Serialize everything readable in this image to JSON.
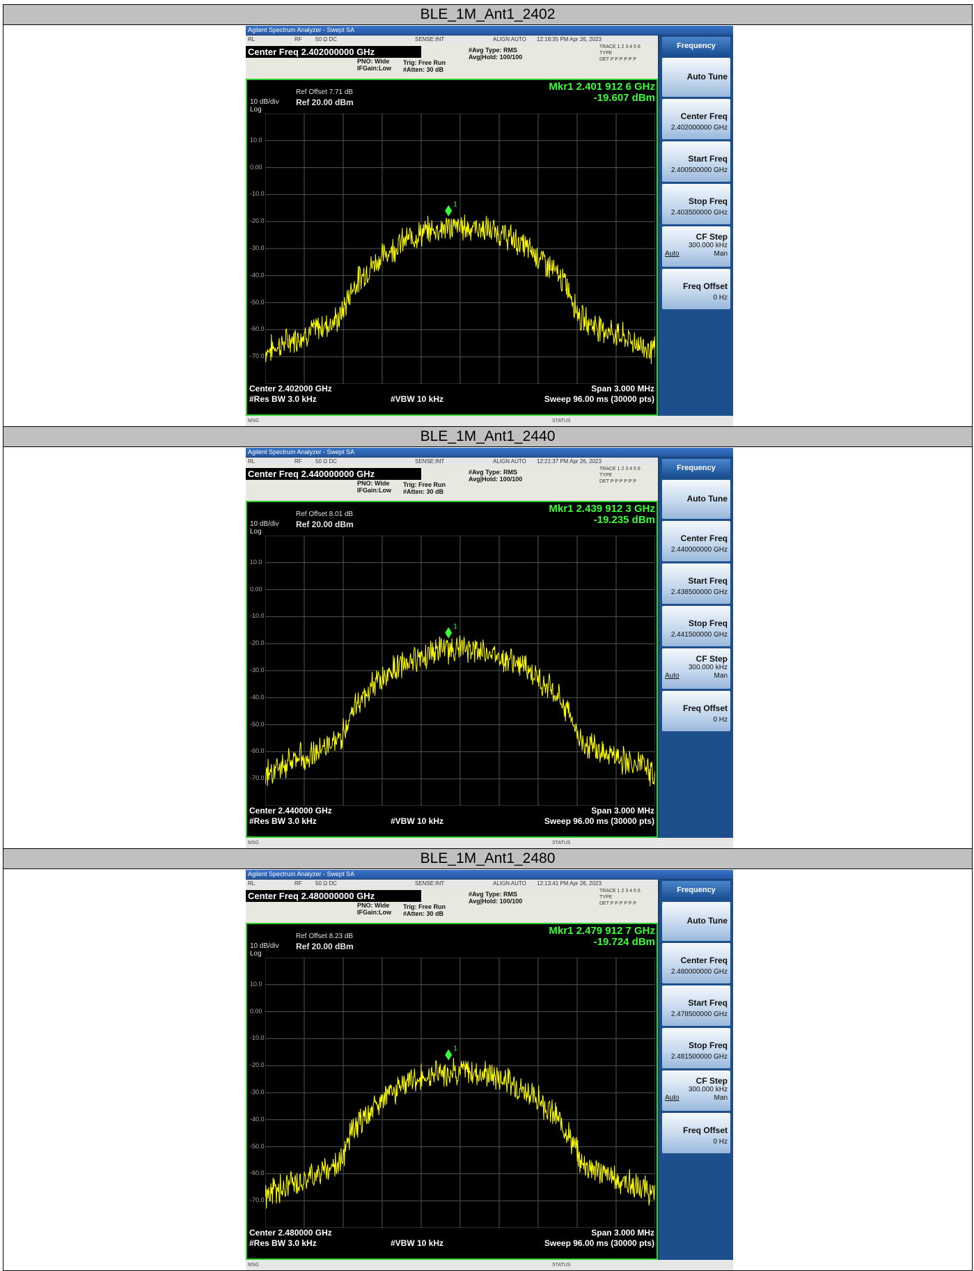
{
  "document": {
    "sections": [
      {
        "title": "BLE_1M_Ant1_2402",
        "app_title": "Agilent Spectrum Analyzer - Swept SA",
        "status_rl": "RL",
        "status_rf": "RF",
        "status_ohm": "50 Ω  DC",
        "status_sense": "SENSE:INT",
        "status_align": "ALIGN AUTO",
        "timestamp": "12:18:35 PM Apr 26, 2023",
        "center_freq": "Center Freq 2.402000000 GHz",
        "pno": "PNO: Wide",
        "ifgain": "IFGain:Low",
        "trig": "Trig: Free Run",
        "atten": "#Atten: 30 dB",
        "avg_type": "#Avg Type: RMS",
        "avg_hold": "Avg|Hold: 100/100",
        "trace_label": "TRACE 1 2 3 4 5 6",
        "type_label": "TYPE",
        "det_label": "DET  P P P P P P",
        "marker_freq": "Mkr1 2.401 912 6 GHz",
        "marker_level": "-19.607 dBm",
        "ref_offset": "Ref Offset 7.71 dB",
        "scale": "10 dB/div",
        "ref_level": "Ref 20.00 dBm",
        "log": "Log",
        "y_ticks": [
          "10.0",
          "0.00",
          "-10.0",
          "-20.0",
          "-30.0",
          "-40.0",
          "-50.0",
          "-60.0",
          "-70.0"
        ],
        "center_label": "Center 2.402000 GHz",
        "span_label": "Span 3.000 MHz",
        "rbw": "#Res BW 3.0 kHz",
        "vbw": "#VBW 10 kHz",
        "sweep": "Sweep  96.00 ms (30000 pts)",
        "msg": "MSG",
        "status": "STATUS",
        "marker_num": "1",
        "softkeys": {
          "header": "Frequency",
          "auto_tune": "Auto Tune",
          "center_freq_label": "Center Freq",
          "center_freq_val": "2.402000000 GHz",
          "start_freq_label": "Start Freq",
          "start_freq_val": "2.400500000 GHz",
          "stop_freq_label": "Stop Freq",
          "stop_freq_val": "2.403500000 GHz",
          "cf_step_label": "CF Step",
          "cf_step_val": "300.000 kHz",
          "cf_auto": "Auto",
          "cf_man": "Man",
          "freq_offset_label": "Freq Offset",
          "freq_offset_val": "0 Hz"
        }
      },
      {
        "title": "BLE_1M_Ant1_2440",
        "app_title": "Agilent Spectrum Analyzer - Swept SA",
        "status_rl": "RL",
        "status_rf": "RF",
        "status_ohm": "50 Ω  DC",
        "status_sense": "SENSE:INT",
        "status_align": "ALIGN AUTO",
        "timestamp": "12:21:37 PM Apr 26, 2023",
        "center_freq": "Center Freq 2.440000000 GHz",
        "pno": "PNO: Wide",
        "ifgain": "IFGain:Low",
        "trig": "Trig: Free Run",
        "atten": "#Atten: 30 dB",
        "avg_type": "#Avg Type: RMS",
        "avg_hold": "Avg|Hold: 100/100",
        "trace_label": "TRACE 1 2 3 4 5 6",
        "type_label": "TYPE",
        "det_label": "DET  P P P P P P",
        "marker_freq": "Mkr1 2.439 912 3 GHz",
        "marker_level": "-19.235 dBm",
        "ref_offset": "Ref Offset 8.01 dB",
        "scale": "10 dB/div",
        "ref_level": "Ref 20.00 dBm",
        "log": "Log",
        "y_ticks": [
          "10.0",
          "0.00",
          "-10.0",
          "-20.0",
          "-30.0",
          "-40.0",
          "-50.0",
          "-60.0",
          "-70.0"
        ],
        "center_label": "Center 2.440000 GHz",
        "span_label": "Span 3.000 MHz",
        "rbw": "#Res BW 3.0 kHz",
        "vbw": "#VBW 10 kHz",
        "sweep": "Sweep  96.00 ms (30000 pts)",
        "msg": "MSG",
        "status": "STATUS",
        "marker_num": "1",
        "softkeys": {
          "header": "Frequency",
          "auto_tune": "Auto Tune",
          "center_freq_label": "Center Freq",
          "center_freq_val": "2.440000000 GHz",
          "start_freq_label": "Start Freq",
          "start_freq_val": "2.438500000 GHz",
          "stop_freq_label": "Stop Freq",
          "stop_freq_val": "2.441500000 GHz",
          "cf_step_label": "CF Step",
          "cf_step_val": "300.000 kHz",
          "cf_auto": "Auto",
          "cf_man": "Man",
          "freq_offset_label": "Freq Offset",
          "freq_offset_val": "0 Hz"
        }
      },
      {
        "title": "BLE_1M_Ant1_2480",
        "app_title": "Agilent Spectrum Analyzer - Swept SA",
        "status_rl": "RL",
        "status_rf": "RF",
        "status_ohm": "50 Ω  DC",
        "status_sense": "SENSE:INT",
        "status_align": "ALIGN AUTO",
        "timestamp": "12:13:41 PM Apr 26, 2023",
        "center_freq": "Center Freq 2.480000000 GHz",
        "pno": "PNO: Wide",
        "ifgain": "IFGain:Low",
        "trig": "Trig: Free Run",
        "atten": "#Atten: 30 dB",
        "avg_type": "#Avg Type: RMS",
        "avg_hold": "Avg|Hold: 100/100",
        "trace_label": "TRACE 1 2 3 4 5 6",
        "type_label": "TYPE",
        "det_label": "DET  P P P P P P",
        "marker_freq": "Mkr1 2.479 912 7 GHz",
        "marker_level": "-19.724 dBm",
        "ref_offset": "Ref Offset 8.23 dB",
        "scale": "10 dB/div",
        "ref_level": "Ref 20.00 dBm",
        "log": "Log",
        "y_ticks": [
          "10.0",
          "0.00",
          "-10.0",
          "-20.0",
          "-30.0",
          "-40.0",
          "-50.0",
          "-60.0",
          "-70.0"
        ],
        "center_label": "Center 2.480000 GHz",
        "span_label": "Span 3.000 MHz",
        "rbw": "#Res BW 3.0 kHz",
        "vbw": "#VBW 10 kHz",
        "sweep": "Sweep  96.00 ms (30000 pts)",
        "msg": "MSG",
        "status": "STATUS",
        "marker_num": "1",
        "softkeys": {
          "header": "Frequency",
          "auto_tune": "Auto Tune",
          "center_freq_label": "Center Freq",
          "center_freq_val": "2.480000000 GHz",
          "start_freq_label": "Start Freq",
          "start_freq_val": "2.478500000 GHz",
          "stop_freq_label": "Stop Freq",
          "stop_freq_val": "2.481500000 GHz",
          "cf_step_label": "CF Step",
          "cf_step_val": "300.000 kHz",
          "cf_auto": "Auto",
          "cf_man": "Man",
          "freq_offset_label": "Freq Offset",
          "freq_offset_val": "0 Hz"
        }
      }
    ]
  },
  "colors": {
    "trace": "#ffff00",
    "marker": "#38ff38",
    "grid": "#555555",
    "frame": "#2ed02e",
    "softkey_panel": "#1d4f8c"
  }
}
